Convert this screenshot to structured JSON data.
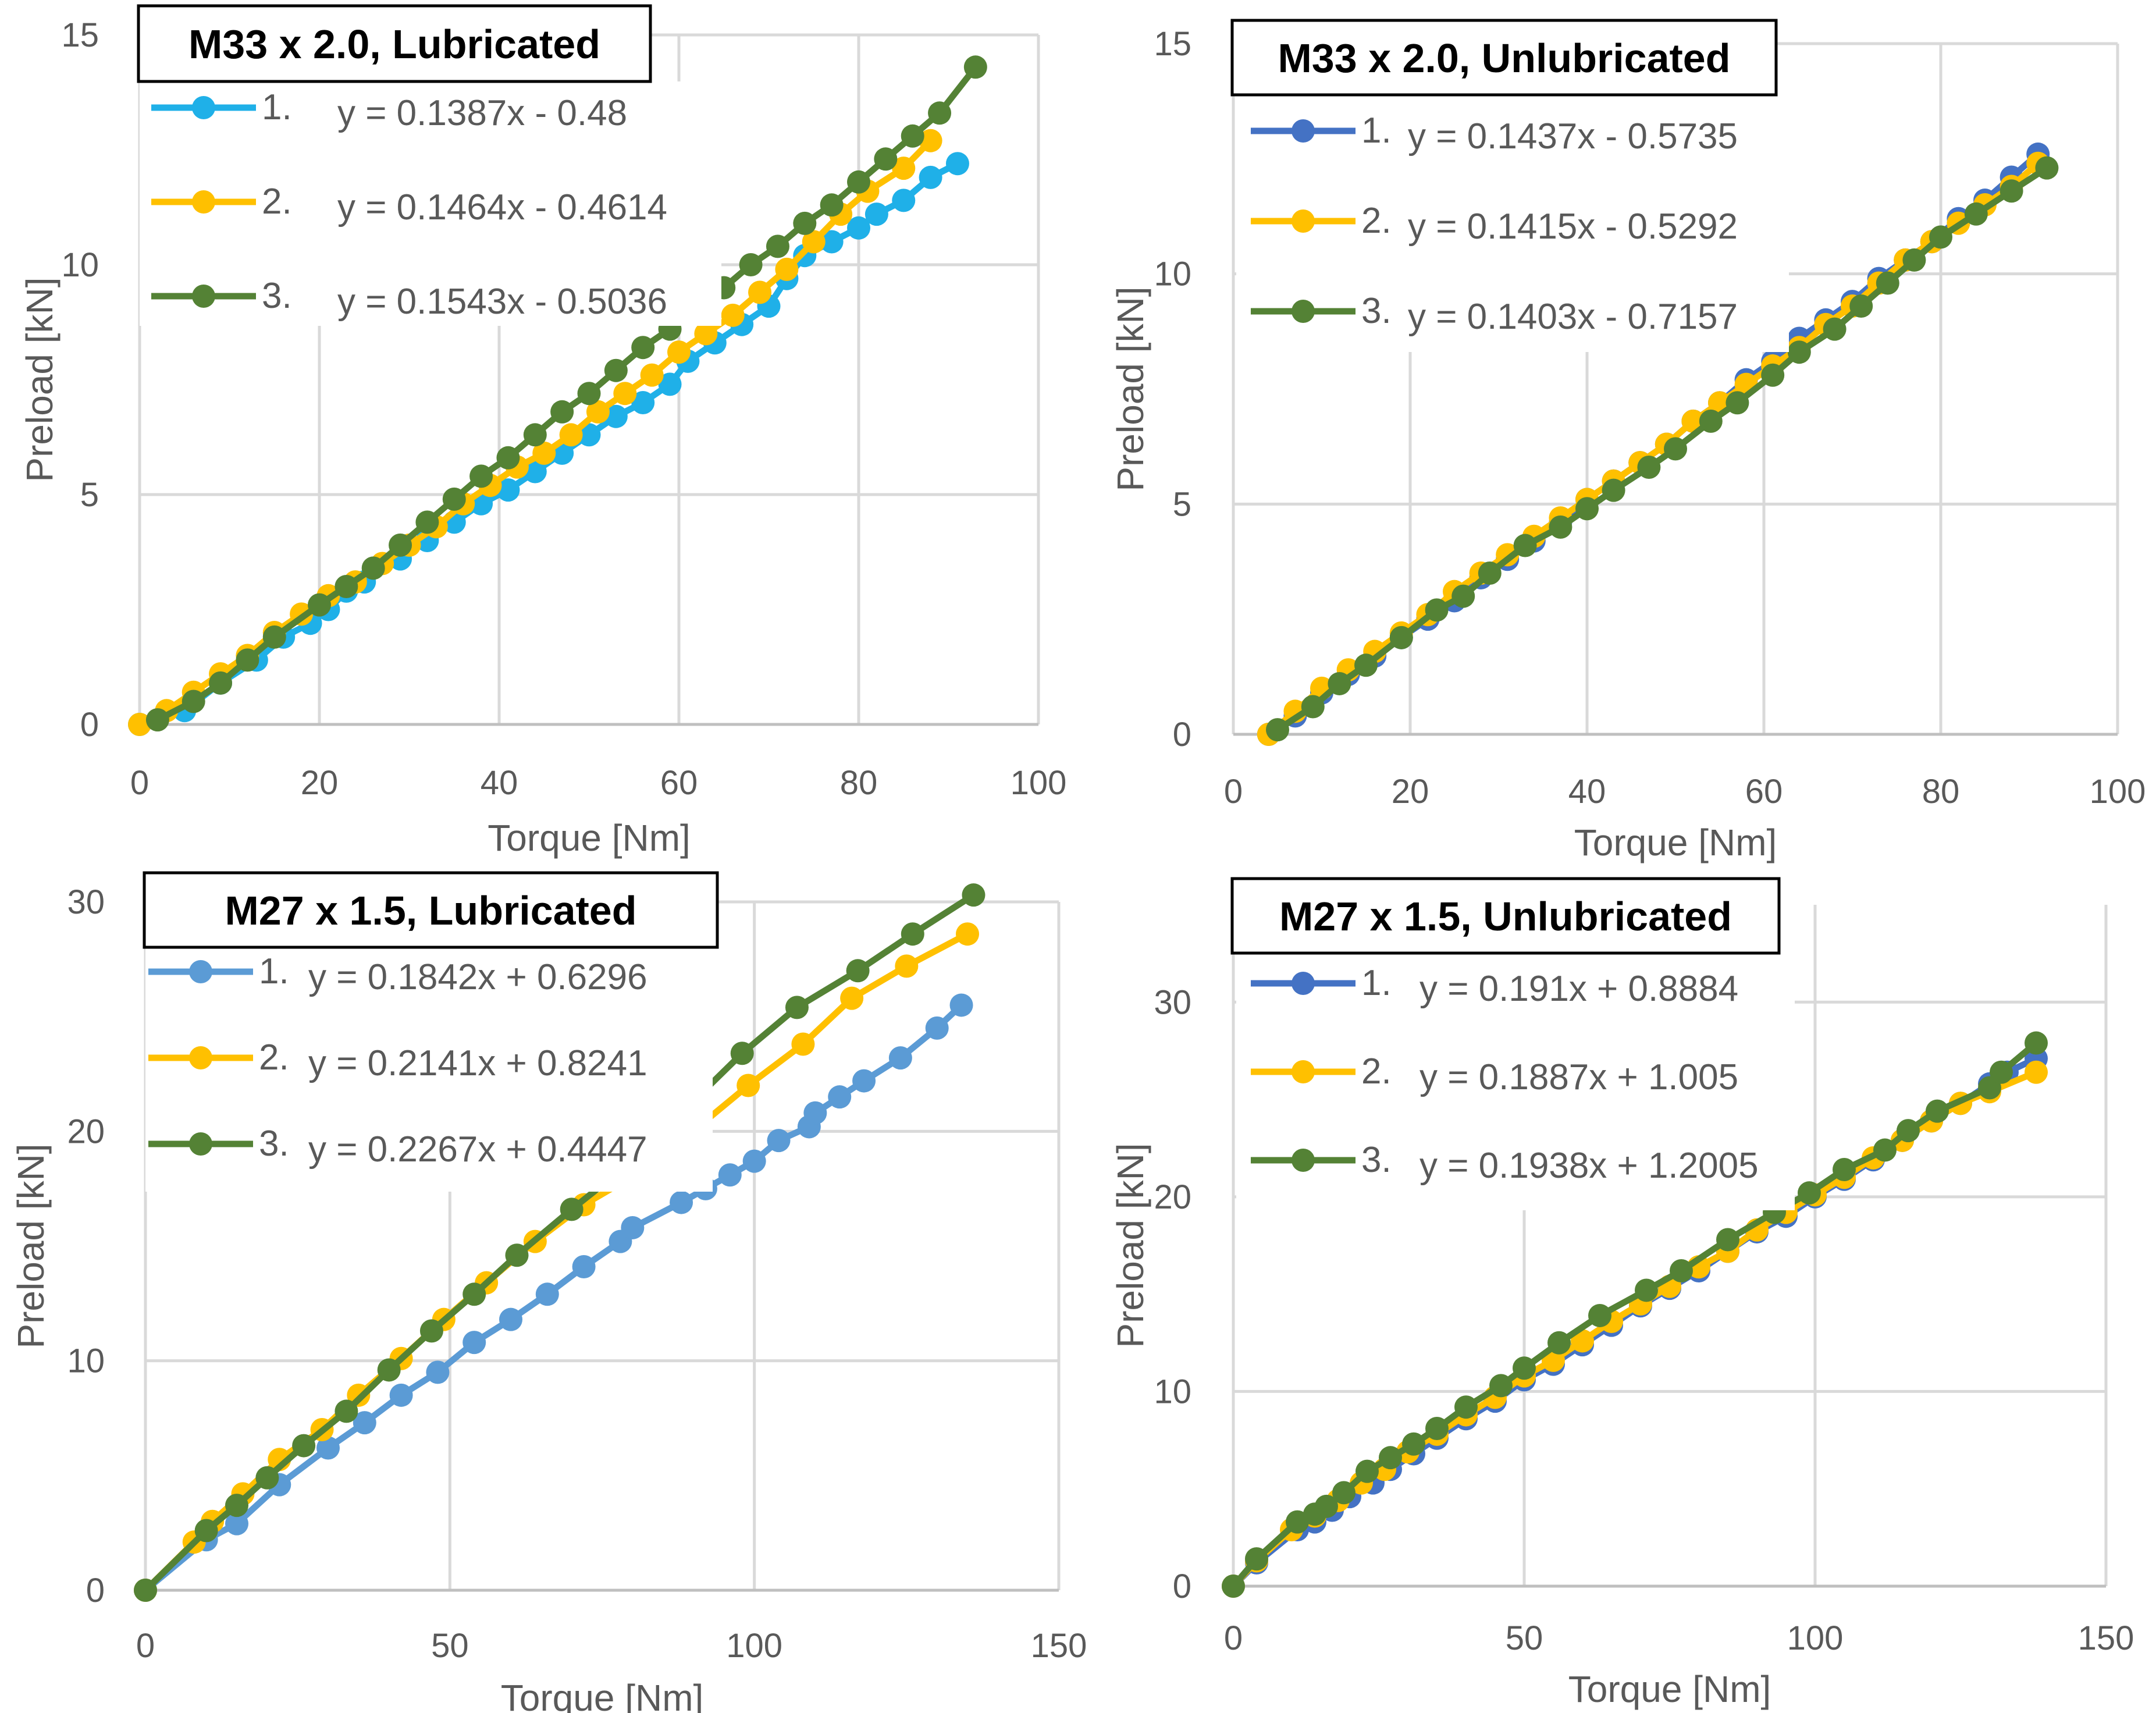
{
  "colors": {
    "blue": "#5B9BD5",
    "light_blue": "#1FB0E8",
    "yellow": "#FFC000",
    "green": "#548235",
    "grid": "#D9D9D9",
    "text": "#595959"
  },
  "chart_data": [
    {
      "type": "line",
      "title": "M33 x 2.0, Lubricated",
      "xlabel": "Torque [Nm]",
      "ylabel": "Preload [kN]",
      "xlim": [
        0,
        100
      ],
      "ylim": [
        0,
        15
      ],
      "xticks": [
        "0",
        "20",
        "40",
        "60",
        "80",
        "100"
      ],
      "yticks": [
        "0",
        "5",
        "10",
        "15"
      ],
      "legend_position": "top-left",
      "series": [
        {
          "name": "1.",
          "equation": "y = 0.1387x - 0.48",
          "color": "#1FB0E8",
          "x": [
            0,
            5,
            9,
            13,
            16,
            19,
            21,
            23,
            25,
            29,
            32,
            35,
            38,
            41,
            44,
            47,
            50,
            53,
            56,
            59,
            61,
            64,
            67,
            70,
            72,
            74,
            77,
            80,
            82,
            85,
            88,
            91
          ],
          "y": [
            0,
            0.3,
            0.9,
            1.4,
            1.9,
            2.2,
            2.5,
            2.9,
            3.1,
            3.6,
            4.0,
            4.4,
            4.8,
            5.1,
            5.5,
            5.9,
            6.3,
            6.7,
            7.0,
            7.4,
            7.9,
            8.3,
            8.7,
            9.1,
            9.7,
            10.2,
            10.5,
            10.8,
            11.1,
            11.4,
            11.9,
            12.2
          ]
        },
        {
          "name": "2.",
          "equation": "y = 0.1464x - 0.4614",
          "color": "#FFC000",
          "x": [
            0,
            3,
            6,
            9,
            12,
            15,
            18,
            21,
            24,
            27,
            30,
            33,
            36,
            39,
            42,
            45,
            48,
            51,
            54,
            57,
            60,
            63,
            66,
            69,
            72,
            75,
            78,
            81,
            85,
            88
          ],
          "y": [
            0,
            0.3,
            0.7,
            1.1,
            1.5,
            2.0,
            2.4,
            2.8,
            3.1,
            3.5,
            3.9,
            4.3,
            4.8,
            5.2,
            5.6,
            5.9,
            6.3,
            6.8,
            7.2,
            7.6,
            8.1,
            8.5,
            8.9,
            9.4,
            9.9,
            10.5,
            11.1,
            11.6,
            12.1,
            12.7
          ]
        },
        {
          "name": "3.",
          "equation": "y = 0.1543x - 0.5036",
          "color": "#548235",
          "x": [
            2,
            6,
            9,
            12,
            15,
            20,
            23,
            26,
            29,
            32,
            35,
            38,
            41,
            44,
            47,
            50,
            53,
            56,
            59,
            62,
            65,
            68,
            71,
            74,
            77,
            80,
            83,
            86,
            89,
            93
          ],
          "y": [
            0.1,
            0.5,
            0.9,
            1.4,
            1.9,
            2.6,
            3.0,
            3.4,
            3.9,
            4.4,
            4.9,
            5.4,
            5.8,
            6.3,
            6.8,
            7.2,
            7.7,
            8.2,
            8.6,
            9.1,
            9.5,
            10.0,
            10.4,
            10.9,
            11.3,
            11.8,
            12.3,
            12.8,
            13.3,
            14.3
          ]
        }
      ]
    },
    {
      "type": "line",
      "title": "M33 x 2.0, Unlubricated",
      "xlabel": "Torque [Nm]",
      "ylabel": "Preload [kN]",
      "xlim": [
        0,
        100
      ],
      "ylim": [
        0,
        15
      ],
      "xticks": [
        "0",
        "20",
        "40",
        "60",
        "80",
        "100"
      ],
      "yticks": [
        "0",
        "5",
        "10",
        "15"
      ],
      "legend_position": "top-left",
      "series": [
        {
          "name": "1.",
          "equation": "y = 0.1437x - 0.5735",
          "color": "#4472C4",
          "x": [
            4,
            7,
            10,
            13,
            16,
            19,
            22,
            25,
            28,
            31,
            34,
            37,
            40,
            43,
            46,
            49,
            52,
            55,
            58,
            61,
            64,
            67,
            70,
            73,
            76,
            79,
            82,
            85,
            88,
            91
          ],
          "y": [
            0,
            0.4,
            0.9,
            1.3,
            1.7,
            2.1,
            2.5,
            2.9,
            3.4,
            3.8,
            4.2,
            4.6,
            5.1,
            5.5,
            5.9,
            6.3,
            6.8,
            7.2,
            7.7,
            8.1,
            8.6,
            9.0,
            9.4,
            9.9,
            10.3,
            10.7,
            11.2,
            11.6,
            12.1,
            12.6
          ]
        },
        {
          "name": "2.",
          "equation": "y = 0.1415x - 0.5292",
          "color": "#FFC000",
          "x": [
            4,
            7,
            10,
            13,
            16,
            19,
            22,
            25,
            28,
            31,
            34,
            37,
            40,
            43,
            46,
            49,
            52,
            55,
            58,
            61,
            64,
            67,
            70,
            73,
            76,
            79,
            82,
            85,
            88,
            91
          ],
          "y": [
            0,
            0.5,
            1.0,
            1.4,
            1.8,
            2.2,
            2.6,
            3.1,
            3.5,
            3.9,
            4.3,
            4.7,
            5.1,
            5.5,
            5.9,
            6.3,
            6.8,
            7.2,
            7.6,
            8.0,
            8.4,
            8.9,
            9.3,
            9.8,
            10.3,
            10.7,
            11.1,
            11.5,
            11.9,
            12.4
          ]
        },
        {
          "name": "3.",
          "equation": "y = 0.1403x - 0.7157",
          "color": "#548235",
          "x": [
            5,
            9,
            12,
            15,
            19,
            23,
            26,
            29,
            33,
            37,
            40,
            43,
            47,
            50,
            54,
            57,
            61,
            64,
            68,
            71,
            74,
            77,
            80,
            84,
            88,
            92
          ],
          "y": [
            0.1,
            0.6,
            1.1,
            1.5,
            2.1,
            2.7,
            3.0,
            3.5,
            4.1,
            4.5,
            4.9,
            5.3,
            5.8,
            6.2,
            6.8,
            7.2,
            7.8,
            8.3,
            8.8,
            9.3,
            9.8,
            10.3,
            10.8,
            11.3,
            11.8,
            12.3
          ]
        }
      ]
    },
    {
      "type": "line",
      "title": "M27 x 1.5, Lubricated",
      "xlabel": "Torque [Nm]",
      "ylabel": "Preload [kN]",
      "xlim": [
        0,
        150
      ],
      "ylim": [
        0,
        30
      ],
      "xticks": [
        "0",
        "50",
        "100",
        "150"
      ],
      "yticks": [
        "0",
        "10",
        "20",
        "30"
      ],
      "legend_position": "top-left",
      "series": [
        {
          "name": "1.",
          "equation": "y = 0.1842x + 0.6296",
          "color": "#5B9BD5",
          "x": [
            0,
            10,
            15,
            22,
            30,
            36,
            42,
            48,
            54,
            60,
            66,
            72,
            78,
            80,
            88,
            92,
            96,
            100,
            104,
            109,
            110,
            114,
            118,
            124,
            130,
            134
          ],
          "y": [
            0,
            2.2,
            2.9,
            4.6,
            6.2,
            7.3,
            8.5,
            9.5,
            10.8,
            11.8,
            12.9,
            14.1,
            15.2,
            15.8,
            16.9,
            17.5,
            18.1,
            18.7,
            19.6,
            20.2,
            20.8,
            21.5,
            22.2,
            23.2,
            24.5,
            25.5
          ]
        },
        {
          "name": "2.",
          "equation": "y = 0.2141x + 0.8241",
          "color": "#FFC000",
          "x": [
            0,
            8,
            11,
            16,
            22,
            29,
            35,
            42,
            49,
            56,
            64,
            72,
            81,
            89,
            99,
            108,
            116,
            125,
            135
          ],
          "y": [
            0,
            2.1,
            3.0,
            4.2,
            5.7,
            7.0,
            8.5,
            10.1,
            11.8,
            13.4,
            15.2,
            16.8,
            18.2,
            19.8,
            22.0,
            23.8,
            25.8,
            27.2,
            28.6
          ]
        },
        {
          "name": "3.",
          "equation": "y = 0.2267x + 0.4447",
          "color": "#548235",
          "x": [
            0,
            10,
            15,
            20,
            26,
            33,
            40,
            47,
            54,
            61,
            70,
            79,
            88,
            98,
            107,
            117,
            126,
            136
          ],
          "y": [
            0,
            2.6,
            3.7,
            4.9,
            6.3,
            7.8,
            9.6,
            11.3,
            12.9,
            14.6,
            16.6,
            18.5,
            20.8,
            23.4,
            25.4,
            27.0,
            28.6,
            30.3
          ]
        }
      ]
    },
    {
      "type": "line",
      "title": "M27 x 1.5, Unlubricated",
      "xlabel": "Torque [Nm]",
      "ylabel": "Preload [kN]",
      "xlim": [
        0,
        150
      ],
      "ylim": [
        0,
        35
      ],
      "xticks": [
        "0",
        "50",
        "100",
        "150"
      ],
      "yticks": [
        "0",
        "10",
        "20",
        "30"
      ],
      "legend_position": "top-left",
      "series": [
        {
          "name": "1.",
          "equation": "y = 0.191x + 0.8884",
          "color": "#4472C4",
          "x": [
            0,
            4,
            11,
            14,
            17,
            20,
            24,
            27,
            31,
            35,
            40,
            45,
            50,
            55,
            60,
            65,
            70,
            75,
            80,
            85,
            90,
            95,
            100,
            105,
            110,
            115,
            120,
            125,
            130,
            133,
            138
          ],
          "y": [
            0,
            1.2,
            2.9,
            3.3,
            3.9,
            4.6,
            5.3,
            6.0,
            6.8,
            7.6,
            8.6,
            9.5,
            10.6,
            11.4,
            12.4,
            13.4,
            14.4,
            15.3,
            16.2,
            17.2,
            18.2,
            19.0,
            20.0,
            20.9,
            21.9,
            22.9,
            23.9,
            24.8,
            25.8,
            26.4,
            27.1
          ]
        },
        {
          "name": "2.",
          "equation": "y = 0.1887x + 1.005",
          "color": "#FFC000",
          "x": [
            0,
            4,
            10,
            14,
            18,
            22,
            26,
            30,
            35,
            40,
            45,
            50,
            55,
            60,
            65,
            70,
            75,
            80,
            85,
            90,
            95,
            100,
            105,
            110,
            115,
            120,
            125,
            130,
            138
          ],
          "y": [
            0,
            1.3,
            2.9,
            3.6,
            4.4,
            5.3,
            6.0,
            6.9,
            7.8,
            8.8,
            9.7,
            10.8,
            11.6,
            12.6,
            13.6,
            14.5,
            15.4,
            16.4,
            17.2,
            18.3,
            19.2,
            20.1,
            21.0,
            22.0,
            22.9,
            23.9,
            24.8,
            25.4,
            26.4
          ]
        },
        {
          "name": "3.",
          "equation": "y = 0.1938x + 1.2005",
          "color": "#548235",
          "x": [
            0,
            4,
            11,
            14,
            16,
            19,
            23,
            27,
            31,
            35,
            40,
            46,
            50,
            56,
            63,
            71,
            77,
            85,
            93,
            99,
            105,
            112,
            116,
            121,
            130,
            132,
            138
          ],
          "y": [
            0,
            1.4,
            3.3,
            3.7,
            4.1,
            4.8,
            5.9,
            6.6,
            7.3,
            8.1,
            9.2,
            10.3,
            11.2,
            12.5,
            13.9,
            15.2,
            16.2,
            17.8,
            19.2,
            20.2,
            21.4,
            22.4,
            23.4,
            24.4,
            25.6,
            26.4,
            27.9
          ]
        }
      ]
    }
  ]
}
